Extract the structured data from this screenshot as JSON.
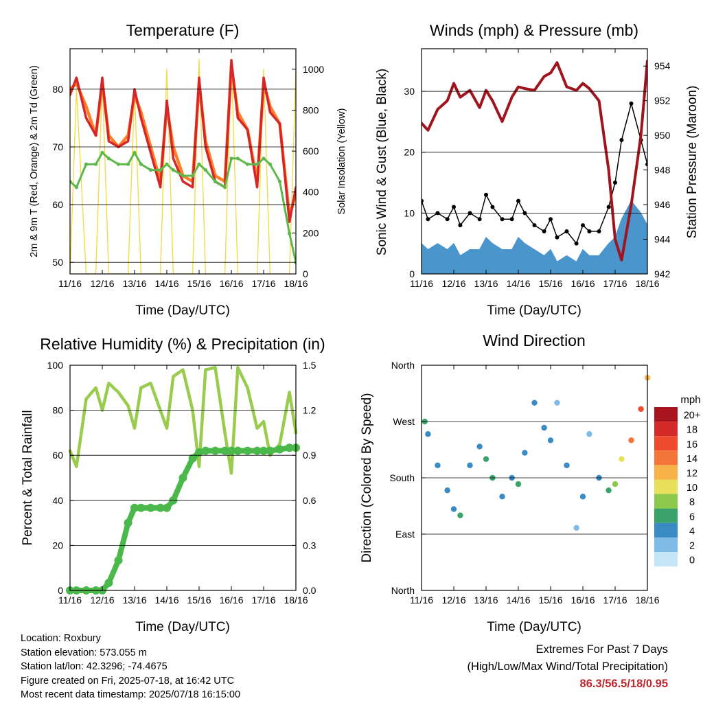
{
  "time_axis": {
    "xlabel": "Time (Day/UTC)",
    "tick_labels": [
      "11/16",
      "12/16",
      "13/16",
      "14/16",
      "15/16",
      "16/16",
      "17/16",
      "18/16"
    ]
  },
  "colors": {
    "t2m": "#d62728",
    "t9m": "#ff7f27",
    "td": "#5cb84a",
    "solar": "#f5d94e",
    "wind": "#4b95cd",
    "gust": "#000000",
    "pressure": "#a0141e",
    "rh": "#99cc4e",
    "precip": "#4ab84a",
    "extremes": "#c0282f"
  },
  "chart_data": [
    {
      "type": "line",
      "title": "Temperature (F)",
      "xlabel": "Time (Day/UTC)",
      "ylabel": "2m & 9m T (Red, Orange) & 2m Td (Green)",
      "ylabel_right": "Solar Insolation (Yellow)",
      "ylim": [
        48,
        87
      ],
      "ylim_right": [
        0,
        1100
      ],
      "yticks": [
        50,
        60,
        70,
        80
      ],
      "yticks_right": [
        0,
        200,
        400,
        600,
        800,
        1000
      ],
      "grid": true,
      "x_days": [
        0,
        0.2,
        0.5,
        0.8,
        1.0,
        1.2,
        1.5,
        1.8,
        2.0,
        2.2,
        2.5,
        2.8,
        3.0,
        3.2,
        3.5,
        3.8,
        4.0,
        4.2,
        4.5,
        4.8,
        5.0,
        5.2,
        5.5,
        5.8,
        6.0,
        6.2,
        6.5,
        6.8,
        7.0
      ],
      "series": [
        {
          "values": [
            79,
            82,
            75,
            72,
            82,
            71,
            70,
            71,
            80,
            75,
            69,
            63,
            78,
            68,
            64,
            63,
            82,
            70,
            64,
            63,
            85,
            75,
            73,
            63,
            82,
            76,
            74,
            57,
            63
          ]
        },
        {
          "values": [
            80,
            81,
            77,
            72,
            81,
            72,
            70,
            72,
            79,
            76,
            70,
            64,
            77,
            70,
            65,
            64,
            81,
            71,
            65,
            64,
            84,
            76,
            73,
            64,
            81,
            77,
            74,
            58,
            62
          ]
        },
        {
          "values": [
            64,
            63,
            67,
            67,
            69,
            68,
            67,
            67,
            69,
            67,
            66,
            66,
            67,
            66,
            65,
            65,
            67,
            66,
            64,
            63,
            68,
            68,
            67,
            67,
            68,
            67,
            64,
            55,
            50
          ]
        },
        {
          "values": [
            0,
            900,
            0,
            0,
            950,
            0,
            0,
            0,
            900,
            0,
            0,
            0,
            1000,
            0,
            0,
            0,
            1050,
            0,
            0,
            0,
            1050,
            0,
            0,
            0,
            1000,
            0,
            0,
            0,
            1000
          ]
        }
      ]
    },
    {
      "type": "line",
      "title": "Winds (mph) & Pressure (mb)",
      "xlabel": "Time (Day/UTC)",
      "ylabel": "Sonic Wind & Gust (Blue, Black)",
      "ylabel_right": "Station Pressure (Maroon)",
      "ylim": [
        0,
        37
      ],
      "ylim_right": [
        942,
        955
      ],
      "yticks": [
        0,
        10,
        20,
        30
      ],
      "yticks_right": [
        942,
        944,
        946,
        948,
        950,
        952,
        954
      ],
      "grid": true,
      "x_days": [
        0,
        0.2,
        0.5,
        0.8,
        1.0,
        1.2,
        1.5,
        1.8,
        2.0,
        2.2,
        2.5,
        2.8,
        3.0,
        3.2,
        3.5,
        3.8,
        4.0,
        4.2,
        4.5,
        4.8,
        5.0,
        5.2,
        5.5,
        5.8,
        6.0,
        6.2,
        6.5,
        6.8,
        7.0
      ],
      "series": [
        {
          "values": [
            5,
            4,
            5,
            4,
            5,
            3,
            4,
            4,
            6,
            5,
            4,
            4,
            6,
            5,
            4,
            3,
            4,
            2,
            3,
            2,
            4,
            3,
            3,
            5,
            6,
            9,
            12,
            10,
            8
          ]
        },
        {
          "values": [
            12,
            9,
            10,
            9,
            11,
            8,
            10,
            9,
            13,
            11,
            9,
            9,
            12,
            10,
            8,
            7,
            9,
            6,
            7,
            5,
            8,
            7,
            7,
            11,
            15,
            22,
            28,
            22,
            18
          ]
        },
        {
          "values": [
            950.7,
            950.3,
            951.5,
            952.0,
            953.0,
            952.2,
            952.6,
            951.6,
            952.6,
            952.0,
            950.8,
            952.2,
            952.8,
            952.7,
            952.6,
            953.4,
            953.6,
            954.2,
            952.8,
            952.6,
            953.0,
            952.7,
            952.0,
            948.0,
            944.0,
            942.8,
            946.0,
            950.0,
            954.3
          ]
        }
      ]
    },
    {
      "type": "line",
      "title": "Relative Humidity (%) & Precipitation (in)",
      "xlabel": "Time (Day/UTC)",
      "ylabel": "Percent & Total Rainfall",
      "ylim": [
        0,
        100
      ],
      "ylim_right": [
        0,
        1.5
      ],
      "yticks": [
        0,
        20,
        40,
        60,
        80,
        100
      ],
      "yticks_right": [
        "0.0",
        "0.3",
        "0.6",
        "0.9",
        "1.2",
        "1.5"
      ],
      "grid": true,
      "x_days": [
        0,
        0.2,
        0.5,
        0.8,
        1.0,
        1.2,
        1.5,
        1.8,
        2.0,
        2.2,
        2.5,
        2.8,
        3.0,
        3.2,
        3.5,
        3.8,
        4.0,
        4.2,
        4.5,
        4.8,
        5.0,
        5.2,
        5.5,
        5.8,
        6.0,
        6.2,
        6.5,
        6.8,
        7.0
      ],
      "series": [
        {
          "values": [
            62,
            55,
            85,
            90,
            80,
            92,
            88,
            82,
            72,
            90,
            92,
            80,
            72,
            95,
            98,
            80,
            55,
            98,
            99,
            70,
            52,
            99,
            90,
            72,
            75,
            60,
            65,
            88,
            70
          ]
        },
        {
          "values": [
            0,
            0,
            0,
            0,
            0,
            0.05,
            0.2,
            0.45,
            0.55,
            0.55,
            0.55,
            0.55,
            0.55,
            0.6,
            0.75,
            0.88,
            0.92,
            0.93,
            0.93,
            0.93,
            0.93,
            0.93,
            0.93,
            0.93,
            0.93,
            0.93,
            0.94,
            0.95,
            0.95
          ]
        }
      ]
    },
    {
      "type": "scatter",
      "title": "Wind Direction",
      "xlabel": "Time (Day/UTC)",
      "ylabel": "Direction (Colored By Speed)",
      "yticks": [
        "North",
        "East",
        "South",
        "West",
        "North"
      ],
      "ylim": [
        0,
        360
      ],
      "grid": true,
      "legend_title": "mph",
      "legend_labels": [
        "20+",
        "18",
        "16",
        "14",
        "12",
        "10",
        "8",
        "6",
        "4",
        "2",
        "0"
      ],
      "legend_colors": [
        "#a8151e",
        "#d42a2a",
        "#ee4a2e",
        "#f4743a",
        "#f8b24a",
        "#e8e05a",
        "#8cc84a",
        "#3aa36a",
        "#3a8ac4",
        "#7ebbe6",
        "#c4e6f6"
      ],
      "legend_placement": "right",
      "x_days": [
        0.1,
        0.2,
        0.5,
        0.8,
        1.0,
        1.2,
        1.5,
        1.8,
        2.0,
        2.2,
        2.5,
        2.8,
        3.0,
        3.2,
        3.5,
        3.8,
        4.0,
        4.2,
        4.5,
        4.8,
        5.0,
        5.2,
        5.5,
        5.8,
        6.0,
        6.2,
        6.5,
        6.8,
        7.0
      ],
      "directions": [
        270,
        250,
        200,
        160,
        130,
        120,
        200,
        230,
        210,
        180,
        150,
        180,
        170,
        220,
        300,
        260,
        240,
        300,
        200,
        100,
        150,
        250,
        180,
        160,
        170,
        210,
        240,
        290,
        340
      ],
      "speeds": [
        6,
        4,
        3,
        3,
        4,
        5,
        4,
        3,
        5,
        6,
        4,
        3,
        5,
        4,
        3,
        3,
        4,
        2,
        3,
        1,
        3,
        2,
        3,
        5,
        8,
        10,
        13,
        16,
        12
      ]
    }
  ],
  "info": {
    "location": "Location: Roxbury",
    "elevation": "Station elevation: 573.055 m",
    "latlon": "Station lat/lon: 42.3296; -74.4675",
    "created": "Figure created on Fri, 2025-07-18, at 16:42 UTC",
    "recent": "Most recent data timestamp: 2025/07/18 16:15:00"
  },
  "extremes": {
    "title": "Extremes For Past 7 Days",
    "subtitle": "(High/Low/Max Wind/Total Precipitation)",
    "values": "86.3/56.5/18/0.95"
  }
}
